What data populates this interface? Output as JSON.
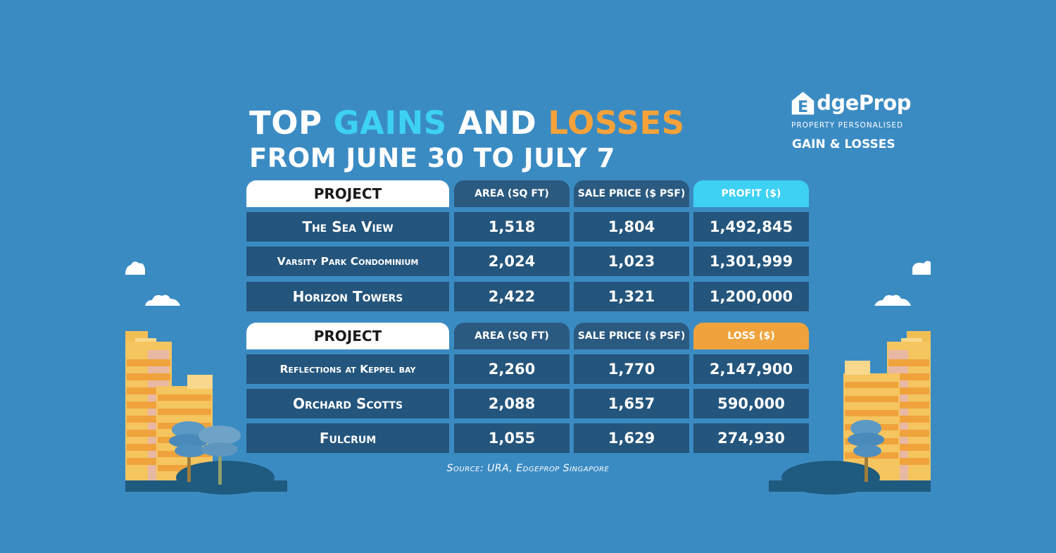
{
  "title": {
    "line1_part1": "TOP ",
    "line1_part2": "GAINS",
    "line1_part3": " AND ",
    "line1_part4": "LOSSES",
    "line2": "FROM JUNE 30 TO JULY 7"
  },
  "logo": {
    "letter": "E",
    "word": "dgeProp",
    "tagline": "PROPERTY PERSONALISED",
    "subtitle": "GAIN & LOSSES"
  },
  "colors": {
    "background": "#3b8bc3",
    "profit": "#3dd1f4",
    "loss": "#f0a33c",
    "cell": "#24557c"
  },
  "chart_data": {
    "type": "table",
    "gains": {
      "headers": [
        "PROJECT",
        "AREA (SQ FT)",
        "SALE PRICE ($ PSF)",
        "PROFIT ($)"
      ],
      "rows": [
        [
          "The Sea View",
          "1,518",
          "1,804",
          "1,492,845"
        ],
        [
          "Varsity Park Condominium",
          "2,024",
          "1,023",
          "1,301,999"
        ],
        [
          "Horizon Towers",
          "2,422",
          "1,321",
          "1,200,000"
        ]
      ]
    },
    "losses": {
      "headers": [
        "PROJECT",
        "AREA (SQ FT)",
        "SALE PRICE ($ PSF)",
        "LOSS ($)"
      ],
      "rows": [
        [
          "Reflections at Keppel bay",
          "2,260",
          "1,770",
          "2,147,900"
        ],
        [
          "Orchard Scotts",
          "2,088",
          "1,657",
          "590,000"
        ],
        [
          "Fulcrum",
          "1,055",
          "1,629",
          "274,930"
        ]
      ]
    }
  },
  "source": "Source: URA, Edgeprop Singapore"
}
